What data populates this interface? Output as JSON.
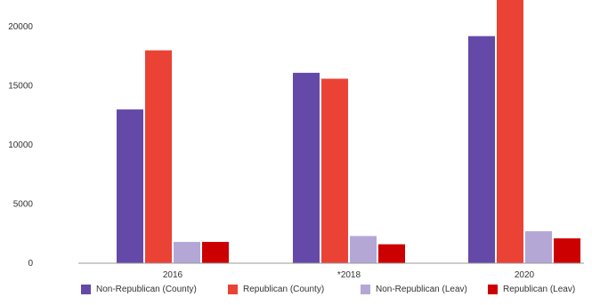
{
  "chart_data": {
    "type": "bar",
    "categories": [
      "2016",
      "*2018",
      "2020"
    ],
    "series": [
      {
        "name": "Non-Republican (County)",
        "color": "#6449a8",
        "values": [
          13000,
          16100,
          19200
        ]
      },
      {
        "name": "Republican (County)",
        "color": "#ea4335",
        "values": [
          18000,
          15600,
          23500
        ]
      },
      {
        "name": "Non-Republican (Leav)",
        "color": "#b4a7d6",
        "values": [
          1800,
          2300,
          2700
        ]
      },
      {
        "name": "Republican (Leav)",
        "color": "#cc0000",
        "values": [
          1800,
          1600,
          2100
        ]
      }
    ],
    "yticks": [
      "0",
      "5000",
      "10000",
      "15000",
      "20000"
    ],
    "ylim": [
      0,
      22000
    ],
    "grid": false,
    "legend_position": "bottom"
  }
}
